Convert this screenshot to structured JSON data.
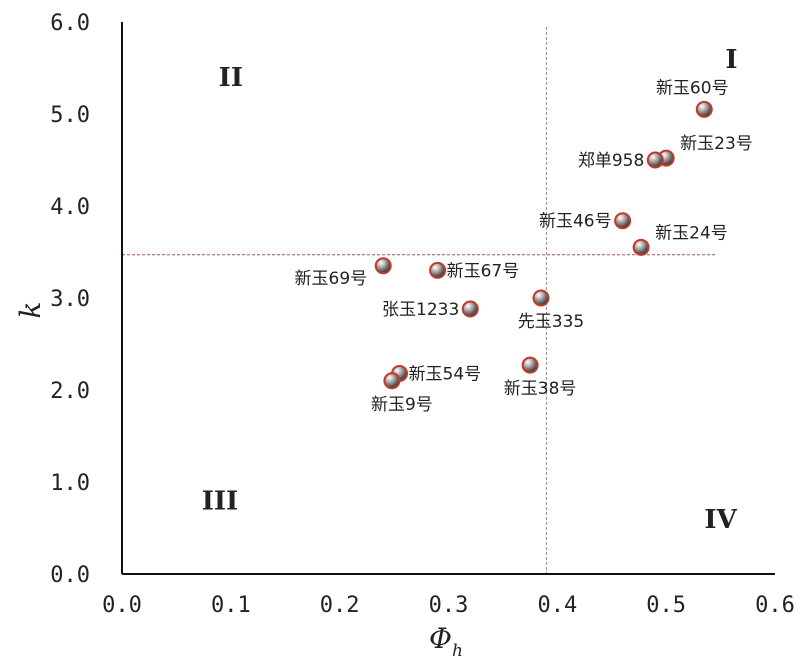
{
  "chart_data": {
    "type": "scatter",
    "title": "",
    "xlabel": "Φ",
    "xlabel_sub": "h",
    "ylabel": "k",
    "xlim": [
      0.0,
      0.6
    ],
    "ylim": [
      0.0,
      6.0
    ],
    "x_ticks": [
      "0.0",
      "0.1",
      "0.2",
      "0.3",
      "0.4",
      "0.5",
      "0.6"
    ],
    "y_ticks": [
      "0.0",
      "1.0",
      "2.0",
      "3.0",
      "4.0",
      "5.0",
      "6.0"
    ],
    "grid": false,
    "reference_lines": {
      "x": 0.39,
      "y": 3.47
    },
    "marker_color": "#c0392b",
    "quadrants": [
      {
        "label": "I",
        "x": 0.56,
        "y": 5.6
      },
      {
        "label": "II",
        "x": 0.1,
        "y": 5.4
      },
      {
        "label": "III",
        "x": 0.09,
        "y": 0.8
      },
      {
        "label": "IV",
        "x": 0.55,
        "y": 0.6
      }
    ],
    "points": [
      {
        "name": "新玉60号",
        "x": 0.535,
        "y": 5.05,
        "label_pos": "above"
      },
      {
        "name": "新玉23号",
        "x": 0.5,
        "y": 4.52,
        "label_pos": "upper-right"
      },
      {
        "name": "郑单958",
        "x": 0.49,
        "y": 4.5,
        "label_pos": "left"
      },
      {
        "name": "新玉46号",
        "x": 0.46,
        "y": 3.84,
        "label_pos": "left"
      },
      {
        "name": "新玉24号",
        "x": 0.477,
        "y": 3.55,
        "label_pos": "upper-right"
      },
      {
        "name": "新玉69号",
        "x": 0.24,
        "y": 3.35,
        "label_pos": "lower-left"
      },
      {
        "name": "新玉67号",
        "x": 0.29,
        "y": 3.3,
        "label_pos": "right"
      },
      {
        "name": "张玉1233",
        "x": 0.32,
        "y": 2.88,
        "label_pos": "left"
      },
      {
        "name": "先玉335",
        "x": 0.385,
        "y": 3.0,
        "label_pos": "below"
      },
      {
        "name": "新玉38号",
        "x": 0.375,
        "y": 2.27,
        "label_pos": "below"
      },
      {
        "name": "新玉54号",
        "x": 0.255,
        "y": 2.18,
        "label_pos": "right"
      },
      {
        "name": "新玉9号",
        "x": 0.248,
        "y": 2.1,
        "label_pos": "below"
      }
    ]
  }
}
